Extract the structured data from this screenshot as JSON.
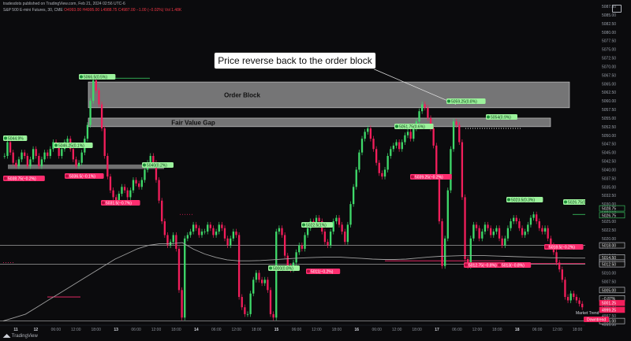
{
  "header": {
    "publisher": "tradesdots published on TradingView.com, Feb 21, 2024 02:56 UTC-6",
    "symbol": "S&P 500 E-mini Futures, 30, CME",
    "ohlc_prefix": "O4993.00 H4995.00 L4988.75 C4987.00",
    "change": "−1.00 (−0.02%)",
    "volume": "Vol 1.48K"
  },
  "annotation": "Price reverse back to the order block",
  "branding": {
    "logo_text": "TradingView"
  },
  "colors": {
    "background": "#0b0b0d",
    "up": "#3fd96a",
    "down": "#f21e5b",
    "zone": "#9a9a9a",
    "high_label": "#9cf29c",
    "low_label": "#ff2d6f",
    "ma": "#9e9e9e"
  },
  "chart_data": {
    "type": "line",
    "title": "",
    "ylim": [
      4995.0,
      5087.5
    ],
    "price_ticks": [
      "5087.50",
      "5085.00",
      "5082.50",
      "5080.00",
      "5077.50",
      "5075.00",
      "5072.50",
      "5070.00",
      "5067.50",
      "5065.00",
      "5062.50",
      "5060.00",
      "5057.50",
      "5055.00",
      "5052.50",
      "5050.00",
      "5047.50",
      "5045.00",
      "5042.50",
      "5040.00",
      "5037.50",
      "5035.00",
      "5032.50",
      "5030.00",
      "5027.50",
      "5025.00",
      "5022.50",
      "5020.00",
      "5017.50",
      "5015.00",
      "5012.50",
      "5010.00",
      "5007.50",
      "5005.00",
      "5002.50",
      "5000.00",
      "4997.50",
      "4995.00"
    ],
    "time_labels": [
      "11",
      "12",
      "06:00",
      "12:00",
      "18:00",
      "13",
      "06:00",
      "12:00",
      "18:00",
      "14",
      "06:00",
      "12:00",
      "18:00",
      "15",
      "06:00",
      "12:00",
      "18:00",
      "16",
      "06:00",
      "12:00",
      "18:00",
      "17",
      "06:00",
      "12:00",
      "18:00",
      "18",
      "06:00",
      "12:00",
      "18:00"
    ],
    "series": [
      {
        "name": "",
        "values": [
          5044,
          5048,
          5045,
          5042,
          5041,
          5043,
          5045,
          5044,
          5041,
          5043,
          5046,
          5044,
          5041,
          5043,
          5045,
          5044,
          5046,
          5048,
          5047,
          5044,
          5046,
          5048,
          5049,
          5046,
          5043,
          5041,
          5042,
          5045,
          5049,
          5053,
          5060,
          5066,
          5063,
          5059,
          5052,
          5044,
          5038,
          5034,
          5032,
          5031,
          5033,
          5035,
          5034,
          5032,
          5034,
          5037,
          5036,
          5035,
          5037,
          5040,
          5042,
          5044,
          5042,
          5037,
          5031,
          5025,
          5021,
          5018,
          5019,
          5021,
          5017,
          5005,
          4997,
          5020,
          5021,
          5022,
          5024,
          5023,
          5021,
          5022,
          5022,
          5024,
          5023,
          5021,
          5022,
          5024,
          5023,
          5020,
          5018,
          5020,
          5022,
          5021,
          5003,
          5000,
          4998,
          4998,
          5004,
          5008,
          5010,
          5008,
          5007,
          5008,
          5005,
          4998,
          4997,
          5022,
          5023,
          5021,
          5015,
          5012,
          5011,
          5013,
          5016,
          5018,
          5017,
          5021,
          5023,
          5025,
          5024,
          5026,
          5025,
          5022,
          5019,
          5018,
          5022,
          5025,
          5026,
          5024,
          5022,
          5019,
          5024,
          5030,
          5035,
          5040,
          5045,
          5049,
          5051,
          5052,
          5049,
          5046,
          5042,
          5039,
          5038,
          5040,
          5044,
          5046,
          5047,
          5048,
          5046,
          5048,
          5050,
          5051,
          5049,
          5052,
          5054,
          5057,
          5059,
          5058,
          5055,
          5052,
          5047,
          5038,
          5025,
          5012,
          5020,
          5034,
          5046,
          5054,
          5053,
          5048,
          5032,
          5014,
          5012,
          5020,
          5024,
          5023,
          5020,
          5022,
          5024,
          5023,
          5021,
          5022,
          5023,
          5020,
          5018,
          5020,
          5023,
          5025,
          5026,
          5025,
          5023,
          5021,
          5022,
          5024,
          5026,
          5027,
          5025,
          5023,
          5022,
          5023,
          5020,
          5018,
          5016,
          5013,
          5011,
          5008,
          5003,
          5002,
          5004,
          5003,
          5002,
          5001,
          5000
        ]
      }
    ],
    "moving_average": [
      4996,
      4997,
      4998,
      5000,
      5002,
      5004,
      5006,
      5008,
      5010,
      5012,
      5014,
      5015.5,
      5017,
      5018,
      5018.5,
      5018.5,
      5018.8,
      5016.9,
      5015.5,
      5014.5,
      5013.8,
      5013.5,
      5013.5,
      5013.6,
      5013.8,
      5014,
      5014.2,
      5014.4,
      5014.5,
      5014.6,
      5014.6,
      5014.4,
      5014.2,
      5014,
      5013.9,
      5013.9,
      5014,
      5014.3,
      5014.6,
      5014.8,
      5014.9,
      5015,
      5015,
      5015,
      5014.9,
      5014.8,
      5014.7,
      5014.6,
      5014.5,
      5014.4,
      5014.4,
      5014.3,
      5014.3
    ],
    "zones": [
      {
        "label": "Order Block",
        "from": 5058.0,
        "to": 5065.5
      },
      {
        "label": "Fair Value Gap",
        "from": 5052.5,
        "to": 5055.0
      }
    ],
    "pivot_labels": [
      {
        "text": "5044.9%",
        "type": "high"
      },
      {
        "text": "5046.25(0.1%)",
        "type": "high"
      },
      {
        "text": "5066.5(0.5%)",
        "type": "high"
      },
      {
        "text": "5040(0.2%)",
        "type": "high"
      },
      {
        "text": "5038.75(−0.2%)",
        "type": "low"
      },
      {
        "text": "5036.5(−0.1%)",
        "type": "low"
      },
      {
        "text": "5031.5(−0.7%)",
        "type": "low"
      },
      {
        "text": "5022.5(1%)",
        "type": "high"
      },
      {
        "text": "5000(0.8%)",
        "type": "high"
      },
      {
        "text": "5011(−0.2%)",
        "type": "low"
      },
      {
        "text": "5051.75(0.6%)",
        "type": "high"
      },
      {
        "text": "5039.25(−0.2%)",
        "type": "low"
      },
      {
        "text": "5059.25(0.8%)",
        "type": "high"
      },
      {
        "text": "5054(0.9%)",
        "type": "high"
      },
      {
        "text": "5012.75(−0.8%)",
        "type": "low"
      },
      {
        "text": "5013(−0.8%)",
        "type": "low"
      },
      {
        "text": "5023.5(0.3%)",
        "type": "high"
      },
      {
        "text": "5026.75(0.2%)",
        "type": "high"
      },
      {
        "text": "5018.5(−0.2%)",
        "type": "low"
      }
    ],
    "axis_tags": [
      {
        "text": "5028.75",
        "kind": "green"
      },
      {
        "text": "5026.75",
        "kind": "green"
      },
      {
        "text": "5018.00",
        "kind": "white"
      },
      {
        "text": "5014.50",
        "kind": "white"
      },
      {
        "text": "5013.00",
        "kind": "white"
      },
      {
        "text": "5012.50",
        "kind": "white"
      },
      {
        "text": "5005.00",
        "kind": "white"
      },
      {
        "text": "−0.87%",
        "kind": "white"
      },
      {
        "text": "5001.25",
        "kind": "red"
      },
      {
        "text": "4999.25",
        "kind": "red"
      },
      {
        "text": "4996.00",
        "kind": "white"
      }
    ],
    "indicator": {
      "title": "Market Trend",
      "value": "Downtrend"
    }
  }
}
